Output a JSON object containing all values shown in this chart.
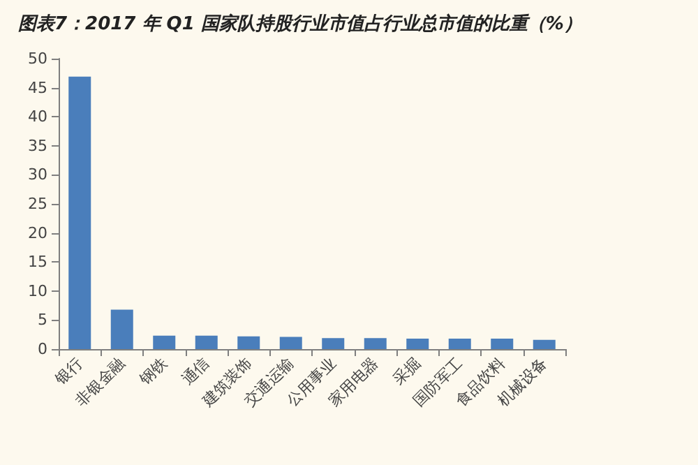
{
  "chart_data": {
    "type": "bar",
    "title": "图表7：2017 年 Q1 国家队持股行业市值占行业总市值的比重（%）",
    "categories": [
      "银行",
      "非银金融",
      "钢铁",
      "通信",
      "建筑装饰",
      "交通运输",
      "公用事业",
      "家用电器",
      "采掘",
      "国防军工",
      "食品饮料",
      "机械设备"
    ],
    "values": [
      46.9,
      6.8,
      2.3,
      2.3,
      2.2,
      2.1,
      1.9,
      1.9,
      1.8,
      1.8,
      1.8,
      1.6
    ],
    "color": "#4a7ebb",
    "ylim": [
      0,
      50
    ],
    "yticks": [
      0,
      5,
      10,
      15,
      20,
      25,
      30,
      35,
      40,
      45,
      50
    ],
    "grid": false
  }
}
